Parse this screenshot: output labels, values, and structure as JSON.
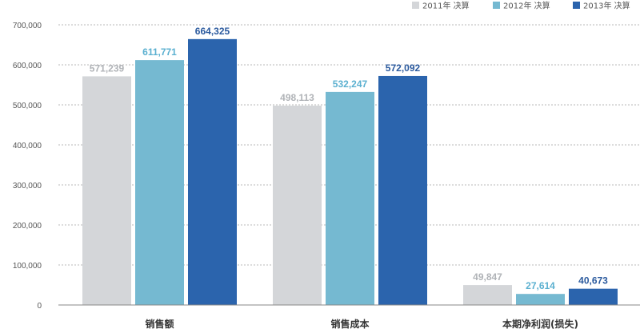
{
  "chart_data": {
    "type": "bar",
    "categories": [
      "销售额",
      "销售成本",
      "本期净利润(损失)"
    ],
    "series": [
      {
        "name": "2011年 决算",
        "values": [
          571239,
          498113,
          49847
        ],
        "labels": [
          "571,239",
          "498,113",
          "49,847"
        ],
        "color": "#d4d6d9",
        "label_color": "#b0b3b7"
      },
      {
        "name": "2012年 决算",
        "values": [
          611771,
          532247,
          27614
        ],
        "labels": [
          "611,771",
          "532,247",
          "27,614"
        ],
        "color": "#75b9d1",
        "label_color": "#5bb0d0"
      },
      {
        "name": "2013年 决算",
        "values": [
          664325,
          572092,
          40673
        ],
        "labels": [
          "664,325",
          "572,092",
          "40,673"
        ],
        "color": "#2b64ad",
        "label_color": "#2b5a9e"
      }
    ],
    "yticks": [
      "0",
      "100,000",
      "200,000",
      "300,000",
      "400,000",
      "500,000",
      "600,000",
      "700,000"
    ],
    "ylim": [
      0,
      700000
    ],
    "grid": true,
    "legend_position": "top-right"
  }
}
